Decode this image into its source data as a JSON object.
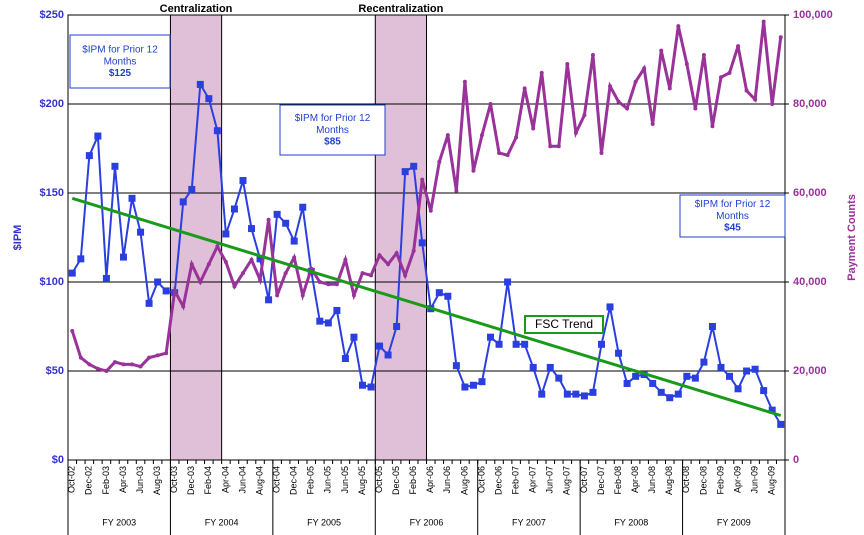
{
  "chart_data": {
    "type": "line",
    "categories": [
      "Oct-02",
      null,
      "Dec-02",
      null,
      "Feb-03",
      null,
      "Apr-03",
      null,
      "Jun-03",
      null,
      "Aug-03",
      null,
      "Oct-03",
      null,
      "Dec-03",
      null,
      "Feb-04",
      null,
      "Apr-04",
      null,
      "Jun-04",
      null,
      "Aug-04",
      null,
      "Oct-04",
      null,
      "Dec-04",
      null,
      "Feb-05",
      null,
      "Jun-05",
      null,
      "Jun-05",
      null,
      "Aug-05",
      null,
      "Oct-05",
      null,
      "Dec-05",
      null,
      "Feb-06",
      null,
      "Apr-06",
      null,
      "Jun-06",
      null,
      "Aug-06",
      null,
      "Oct-06",
      null,
      "Dec-06",
      null,
      "Feb-07",
      null,
      "Apr-07",
      null,
      "Jun-07",
      null,
      "Aug-07",
      null,
      "Oct-07",
      null,
      "Dec-07",
      null,
      "Feb-08",
      null,
      "Apr-08",
      null,
      "Jun-08",
      null,
      "Aug-08",
      null,
      "Oct-08",
      null,
      "Dec-08",
      null,
      "Feb-09",
      null,
      "Apr-09",
      null,
      "Jun-09",
      null,
      "Aug-09",
      null
    ],
    "series": [
      {
        "name": "$IPM",
        "color": "#2b3fe0",
        "axis": "y",
        "values": [
          105,
          113,
          171,
          182,
          102,
          165,
          114,
          147,
          128,
          88,
          100,
          95,
          94,
          145,
          152,
          211,
          203,
          185,
          127,
          141,
          157,
          130,
          113,
          90,
          138,
          133,
          123,
          142,
          106,
          78,
          77,
          84,
          57,
          69,
          42,
          41,
          64,
          59,
          75,
          162,
          165,
          122,
          85,
          94,
          92,
          53,
          41,
          42,
          44,
          69,
          65,
          100,
          65,
          65,
          52,
          37,
          52,
          46,
          37,
          37,
          36,
          38,
          65,
          86,
          60,
          43,
          47,
          48,
          43,
          38,
          35,
          37,
          47,
          46,
          55,
          75,
          52,
          47,
          40,
          50,
          51,
          39,
          28,
          20
        ]
      },
      {
        "name": "Payment Counts",
        "color": "#993399",
        "axis": "y2",
        "values": [
          29000,
          23000,
          21500,
          20500,
          20000,
          22000,
          21500,
          21500,
          21000,
          23000,
          23500,
          24000,
          38000,
          34500,
          44000,
          40000,
          44000,
          48000,
          44500,
          39000,
          42000,
          45000,
          40500,
          54000,
          37000,
          42000,
          45500,
          37000,
          43000,
          40000,
          39500,
          39500,
          45000,
          37000,
          42000,
          41500,
          46000,
          44000,
          46500,
          41500,
          47000,
          63000,
          56000,
          67000,
          73000,
          60500,
          85000,
          65000,
          73000,
          80000,
          69000,
          68500,
          72500,
          83500,
          74500,
          87000,
          70500,
          70500,
          89000,
          73500,
          77500,
          91000,
          69000,
          84000,
          80500,
          79000,
          85000,
          88000,
          75500,
          92000,
          83500,
          97500,
          89000,
          79000,
          91000,
          75000,
          86000,
          87000,
          93000,
          83000,
          81000,
          98500,
          80000,
          95000
        ]
      }
    ],
    "trend": {
      "label": "FSC Trend",
      "color": "#1a9a1a",
      "values": [
        147,
        25
      ]
    },
    "ylabel": "$IPM",
    "y2label": "Payment Counts",
    "ylim": [
      0,
      250
    ],
    "yticks": [
      {
        "value": 0,
        "label": "$0"
      },
      {
        "value": 50,
        "label": "$50"
      },
      {
        "value": 100,
        "label": "$100"
      },
      {
        "value": 150,
        "label": "$150"
      },
      {
        "value": 200,
        "label": "$200"
      },
      {
        "value": 250,
        "label": "$250"
      }
    ],
    "y2lim": [
      0,
      100000
    ],
    "y2ticks": [
      0,
      {
        "value": 20000,
        "label": "20,000"
      },
      {
        "value": 40000,
        "label": "40,000"
      },
      {
        "value": 60000,
        "label": "60,000"
      },
      {
        "value": 80000,
        "label": "80,000"
      },
      {
        "value": 100000,
        "label": "100,000"
      }
    ],
    "grid": true,
    "bands": [
      {
        "label": "Centralization",
        "start": "Oct-03",
        "end": "Apr-04"
      },
      {
        "label": "Recentralization",
        "start": "Oct-05",
        "end": "Apr-06"
      }
    ],
    "annotations": [
      {
        "text": "$IPM for Prior 12 Months",
        "value": "$125"
      },
      {
        "text": "$IPM for Prior 12 Months",
        "value": "$85"
      },
      {
        "text": "$IPM for Prior 12 Months",
        "value": "$45"
      }
    ],
    "fiscal_years": [
      "FY 2003",
      "FY 2004",
      "FY 2005",
      "FY 2006",
      "FY 2007",
      "FY 2008",
      "FY 2009"
    ]
  }
}
